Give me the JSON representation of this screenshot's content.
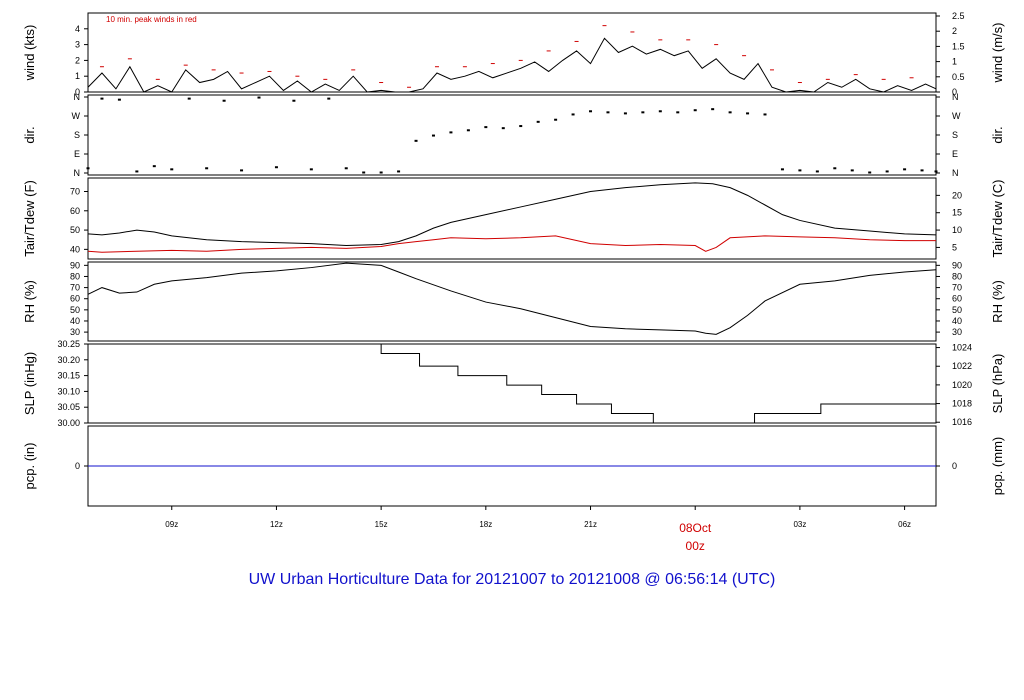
{
  "title": "UW Urban Horticulture Data for 20121007  to  20121008 @ 06:56:14  (UTC)",
  "colors": {
    "text": "#000000",
    "red": "#d00000",
    "blue": "#1111cc",
    "axis": "#000000"
  },
  "chart_data": {
    "type": "line",
    "time_axis": {
      "unit": "hours since 2012-10-07 00z (UTC)",
      "range": [
        6.6,
        30.9
      ],
      "ticks": [
        {
          "hour": 9,
          "label": "09z"
        },
        {
          "hour": 12,
          "label": "12z"
        },
        {
          "hour": 15,
          "label": "15z"
        },
        {
          "hour": 18,
          "label": "18z"
        },
        {
          "hour": 21,
          "label": "21z"
        },
        {
          "hour": 24,
          "label": "00z",
          "date_label": "08Oct"
        },
        {
          "hour": 27,
          "label": "03z"
        },
        {
          "hour": 30,
          "label": "06z"
        }
      ]
    },
    "panels": [
      {
        "id": "wind",
        "ylabel_left": "wind (kts)",
        "ylabel_right": "wind (m/s)",
        "ylim": [
          0,
          5
        ],
        "left_ticks": [
          "0",
          "1",
          "2",
          "3",
          "4"
        ],
        "right_ticks": [
          "0",
          "0.5",
          "1",
          "1.5",
          "2",
          "2.5"
        ],
        "annotation": "10 min. peak winds in red",
        "series": [
          {
            "name": "wind",
            "color": "#000000",
            "x": [
              6.6,
              7,
              7.4,
              7.8,
              8.2,
              8.6,
              9,
              9.4,
              9.8,
              10.2,
              10.6,
              11,
              11.4,
              11.8,
              12.2,
              12.6,
              13,
              13.4,
              13.8,
              14.2,
              14.6,
              15,
              15.4,
              15.8,
              16.2,
              16.6,
              17,
              17.4,
              17.8,
              18.2,
              18.6,
              19,
              19.4,
              19.8,
              20.2,
              20.6,
              21,
              21.4,
              21.8,
              22.2,
              22.6,
              23,
              23.4,
              23.8,
              24.2,
              24.6,
              25,
              25.4,
              25.8,
              26.2,
              26.6,
              27,
              27.4,
              27.8,
              28.2,
              28.6,
              29,
              29.4,
              29.8,
              30.2,
              30.6,
              30.9
            ],
            "y": [
              0.3,
              1.2,
              0.2,
              1.6,
              0,
              0.4,
              0,
              1.4,
              0.6,
              0.8,
              1.3,
              0.2,
              0.6,
              1.0,
              0.1,
              0.7,
              0,
              0.5,
              0.1,
              1.0,
              0,
              0.1,
              0,
              0,
              0.2,
              1.2,
              0.8,
              1.0,
              1.3,
              0.9,
              1.2,
              1.5,
              1.9,
              1.3,
              2.0,
              2.6,
              1.8,
              3.4,
              2.5,
              2.9,
              2.4,
              2.7,
              2.3,
              2.6,
              1.5,
              2.1,
              1.2,
              0.8,
              1.8,
              0.3,
              0,
              0.1,
              0,
              0.6,
              0.3,
              0.8,
              0.2,
              0,
              0.4,
              0.1,
              0.5,
              0.2
            ]
          },
          {
            "name": "10 min. peak winds",
            "color": "#d00000",
            "x": [
              7,
              7.8,
              8.6,
              9.4,
              10.2,
              11,
              11.8,
              12.6,
              13.4,
              14.2,
              15,
              15.8,
              16.6,
              17.4,
              18.2,
              19,
              19.8,
              20.6,
              21.4,
              22.2,
              23,
              23.8,
              24.6,
              25.4,
              26.2,
              27,
              27.8,
              28.6,
              29.4,
              30.2
            ],
            "y": [
              1.6,
              2.1,
              0.8,
              1.7,
              1.4,
              1.2,
              1.3,
              1.0,
              0.8,
              1.4,
              0.6,
              0.3,
              1.6,
              1.6,
              1.8,
              2.0,
              2.6,
              3.2,
              4.2,
              3.8,
              3.3,
              3.3,
              3.0,
              2.3,
              1.4,
              0.6,
              0.8,
              1.1,
              0.8,
              0.9
            ]
          }
        ]
      },
      {
        "id": "dir",
        "ylabel_left": "dir.",
        "ylabel_right": "dir.",
        "ylim": [
          0,
          360
        ],
        "left_ticks": [
          "N",
          "E",
          "S",
          "W",
          "N"
        ],
        "right_ticks": [
          "N",
          "E",
          "S",
          "W",
          "N"
        ],
        "series": [
          {
            "name": "wind direction (deg)",
            "color": "#000000",
            "x": [
              6.6,
              7,
              7.5,
              8,
              8.5,
              9,
              9.5,
              10,
              10.5,
              11,
              11.5,
              12,
              12.5,
              13,
              13.5,
              14,
              14.5,
              15,
              15.5,
              16,
              16.5,
              17,
              17.5,
              18,
              18.5,
              19,
              19.5,
              20,
              20.5,
              21,
              21.5,
              22,
              22.5,
              23,
              23.5,
              24,
              24.5,
              25,
              25.5,
              26,
              26.5,
              27,
              27.5,
              28,
              28.5,
              29,
              29.5,
              30,
              30.5,
              30.9
            ],
            "y": [
              20,
              350,
              345,
              5,
              30,
              15,
              350,
              20,
              340,
              10,
              355,
              25,
              340,
              15,
              350,
              20,
              0,
              0,
              5,
              150,
              175,
              190,
              200,
              215,
              210,
              220,
              240,
              250,
              275,
              290,
              285,
              280,
              285,
              290,
              285,
              295,
              300,
              285,
              280,
              275,
              15,
              10,
              5,
              20,
              10,
              0,
              5,
              15,
              10,
              5
            ]
          }
        ]
      },
      {
        "id": "temp",
        "ylabel_left": "Tair/Tdew (F)",
        "ylabel_right": "Tair/Tdew (C)",
        "ylim": [
          35,
          77
        ],
        "left_ticks": [
          "40",
          "50",
          "60",
          "70"
        ],
        "right_ticks": [
          "5",
          "10",
          "15",
          "20"
        ],
        "series": [
          {
            "name": "Tair",
            "color": "#000000",
            "x": [
              6.6,
              7,
              7.5,
              8,
              8.5,
              9,
              10,
              11,
              12,
              13,
              14,
              15,
              15.5,
              16,
              16.5,
              17,
              18,
              19,
              20,
              21,
              22,
              23,
              24,
              24.5,
              25,
              25.5,
              26,
              26.5,
              27,
              28,
              29,
              30,
              30.9
            ],
            "y": [
              48,
              47.5,
              48.5,
              50,
              49,
              47,
              45,
              44,
              43.5,
              43,
              42,
              42.5,
              44,
              47,
              51,
              54,
              58,
              62,
              66,
              70,
              72,
              73.5,
              74.5,
              74,
              72,
              68,
              63,
              58,
              55,
              51,
              49.5,
              48,
              47.5
            ]
          },
          {
            "name": "Tdew",
            "color": "#d00000",
            "x": [
              6.6,
              7,
              8,
              9,
              10,
              11,
              12,
              13,
              14,
              15,
              15.5,
              16,
              16.5,
              17,
              18,
              19,
              20,
              21,
              22,
              23,
              24,
              24.3,
              24.6,
              25,
              26,
              27,
              28,
              29,
              30,
              30.9
            ],
            "y": [
              39,
              38.5,
              39,
              39.5,
              39,
              40,
              40.5,
              41,
              40.5,
              41.5,
              43,
              44,
              45,
              46,
              45.5,
              46,
              47,
              43,
              42,
              42.5,
              42,
              39,
              41,
              46,
              47,
              46.5,
              46,
              45,
              44.5,
              44.5
            ]
          }
        ]
      },
      {
        "id": "rh",
        "ylabel_left": "RH (%)",
        "ylabel_right": "RH (%)",
        "ylim": [
          22,
          93
        ],
        "left_ticks": [
          "30",
          "40",
          "50",
          "60",
          "70",
          "80",
          "90"
        ],
        "right_ticks": [
          "30",
          "40",
          "50",
          "60",
          "70",
          "80",
          "90"
        ],
        "series": [
          {
            "name": "RH",
            "color": "#000000",
            "x": [
              6.6,
              7,
              7.5,
              8,
              8.5,
              9,
              10,
              11,
              12,
              13,
              14,
              15,
              15.5,
              16,
              17,
              18,
              19,
              20,
              21,
              22,
              23,
              24,
              24.3,
              24.6,
              25,
              25.5,
              26,
              27,
              28,
              29,
              30,
              30.9
            ],
            "y": [
              64,
              70,
              65,
              66,
              73,
              76,
              79,
              83,
              85,
              88,
              92,
              90,
              84,
              78,
              67,
              57,
              51,
              43,
              35,
              33,
              32,
              31,
              29,
              28,
              34,
              45,
              58,
              73,
              76,
              81,
              84,
              86
            ]
          }
        ]
      },
      {
        "id": "slp",
        "ylabel_left": "SLP (inHg)",
        "ylabel_right": "SLP (hPa)",
        "ylim": [
          30.0,
          30.25
        ],
        "left_ticks": [
          "30.00",
          "30.05",
          "30.10",
          "30.15",
          "30.20",
          "30.25"
        ],
        "right_ticks": [
          "1016",
          "1018",
          "1020",
          "1022",
          "1024"
        ],
        "series": [
          {
            "name": "SLP",
            "color": "#000000",
            "step": true,
            "x": [
              6.6,
              15,
              16.1,
              17.2,
              18.6,
              19.6,
              20.6,
              21.6,
              22.8,
              25.7,
              27.6,
              30.9
            ],
            "y": [
              30.25,
              30.22,
              30.18,
              30.15,
              30.12,
              30.09,
              30.06,
              30.03,
              30.0,
              30.03,
              30.06,
              30.06
            ]
          }
        ]
      },
      {
        "id": "pcp",
        "ylabel_left": "pcp. (in)",
        "ylabel_right": "pcp. (mm)",
        "ylim": [
          -1,
          1
        ],
        "left_ticks": [
          "0"
        ],
        "right_ticks": [
          "0"
        ],
        "series": [
          {
            "name": "pcp",
            "color": "#1111cc",
            "x": [
              6.6,
              30.9
            ],
            "y": [
              0,
              0
            ]
          }
        ]
      }
    ]
  }
}
